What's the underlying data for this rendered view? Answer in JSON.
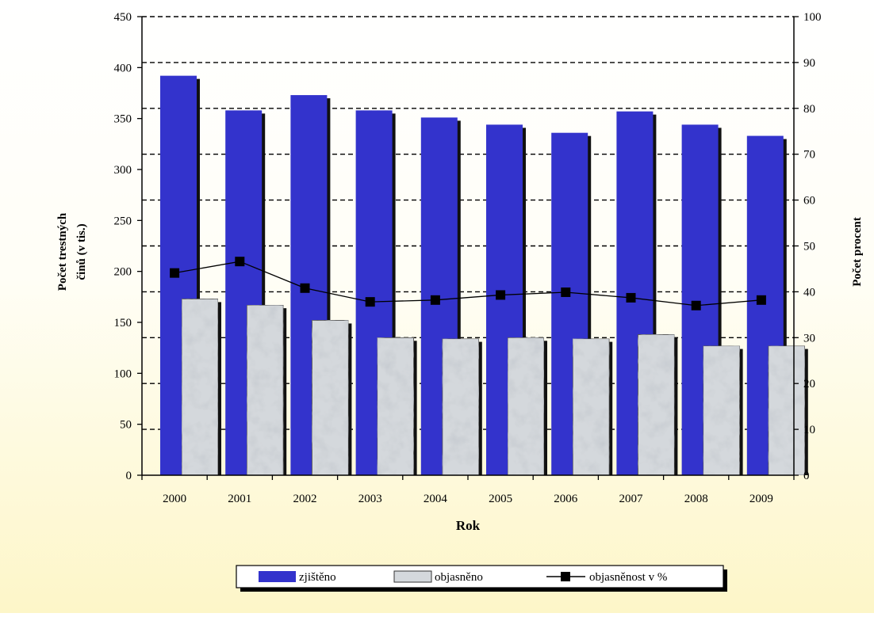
{
  "chart_data": {
    "type": "bar",
    "categories": [
      "2000",
      "2001",
      "2002",
      "2003",
      "2004",
      "2005",
      "2006",
      "2007",
      "2008",
      "2009"
    ],
    "series": [
      {
        "name": "zjištěno",
        "kind": "bar",
        "axis": "left",
        "color": "#3333cc",
        "values": [
          392,
          358,
          373,
          358,
          351,
          344,
          336,
          357,
          344,
          333
        ]
      },
      {
        "name": "objasněno",
        "kind": "bar",
        "axis": "left",
        "color": "#d4d8dc",
        "values": [
          173,
          167,
          152,
          135,
          134,
          135,
          134,
          138,
          127,
          127
        ]
      },
      {
        "name": "objasněnost v %",
        "kind": "line",
        "axis": "right",
        "color": "#000000",
        "values": [
          44.1,
          46.6,
          40.8,
          37.8,
          38.2,
          39.3,
          39.9,
          38.7,
          37.0,
          38.2
        ]
      }
    ],
    "xlabel": "Rok",
    "ylabel": "Počet trestných činů (v tis.)",
    "y2label": "Počet procent",
    "ylim": [
      0,
      450
    ],
    "y2lim": [
      0,
      100
    ],
    "yticks": [
      "0",
      "50",
      "100",
      "150",
      "200",
      "250",
      "300",
      "350",
      "400",
      "450"
    ],
    "y2ticks": [
      "0",
      "10",
      "20",
      "30",
      "40",
      "50",
      "60",
      "70",
      "80",
      "90",
      "100"
    ],
    "grid": "dashed horizontal",
    "legend_position": "bottom"
  }
}
